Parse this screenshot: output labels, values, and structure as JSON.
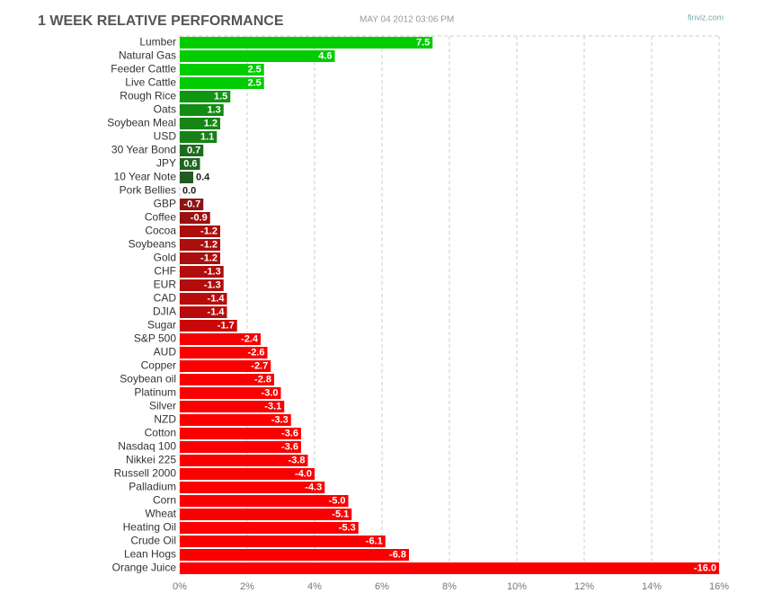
{
  "chart_data": {
    "type": "hbar",
    "title": "1 WEEK RELATIVE PERFORMANCE",
    "subtitle": "MAY 04 2012 03:06 PM",
    "source": "finviz.com",
    "categories": [
      "Lumber",
      "Natural Gas",
      "Feeder Cattle",
      "Live Cattle",
      "Rough Rice",
      "Oats",
      "Soybean Meal",
      "USD",
      "30 Year Bond",
      "JPY",
      "10 Year Note",
      "Pork Bellies",
      "GBP",
      "Coffee",
      "Cocoa",
      "Soybeans",
      "Gold",
      "CHF",
      "EUR",
      "CAD",
      "DJIA",
      "Sugar",
      "S&P 500",
      "AUD",
      "Copper",
      "Soybean oil",
      "Platinum",
      "Silver",
      "NZD",
      "Cotton",
      "Nasdaq 100",
      "Nikkei 225",
      "Russell 2000",
      "Palladium",
      "Corn",
      "Wheat",
      "Heating Oil",
      "Crude Oil",
      "Lean Hogs",
      "Orange Juice"
    ],
    "values": [
      7.5,
      4.6,
      2.5,
      2.5,
      1.5,
      1.3,
      1.2,
      1.1,
      0.7,
      0.6,
      0.4,
      0.0,
      -0.7,
      -0.9,
      -1.2,
      -1.2,
      -1.2,
      -1.3,
      -1.3,
      -1.4,
      -1.4,
      -1.7,
      -2.4,
      -2.6,
      -2.7,
      -2.8,
      -3.0,
      -3.1,
      -3.3,
      -3.6,
      -3.6,
      -3.8,
      -4.0,
      -4.3,
      -5.0,
      -5.1,
      -5.3,
      -6.1,
      -6.8,
      -16.0
    ],
    "value_labels": [
      "7.5",
      "4.6",
      "2.5",
      "2.5",
      "1.5",
      "1.3",
      "1.2",
      "1.1",
      "0.7",
      "0.6",
      "0.4",
      "0.0",
      "-0.7",
      "-0.9",
      "-1.2",
      "-1.2",
      "-1.2",
      "-1.3",
      "-1.3",
      "-1.4",
      "-1.4",
      "-1.7",
      "-2.4",
      "-2.6",
      "-2.7",
      "-2.8",
      "-3.0",
      "-3.1",
      "-3.3",
      "-3.6",
      "-3.6",
      "-3.8",
      "-4.0",
      "-4.3",
      "-5.0",
      "-5.1",
      "-5.3",
      "-6.1",
      "-6.8",
      "-16.0"
    ],
    "xlim": [
      0,
      16
    ],
    "xticks": [
      {
        "value": 0,
        "label": "0%"
      },
      {
        "value": 2,
        "label": "2%"
      },
      {
        "value": 4,
        "label": "4%"
      },
      {
        "value": 6,
        "label": "6%"
      },
      {
        "value": 8,
        "label": "8%"
      },
      {
        "value": 10,
        "label": "10%"
      },
      {
        "value": 12,
        "label": "12%"
      },
      {
        "value": 14,
        "label": "14%"
      },
      {
        "value": 16,
        "label": "16%"
      }
    ],
    "grid": true
  }
}
